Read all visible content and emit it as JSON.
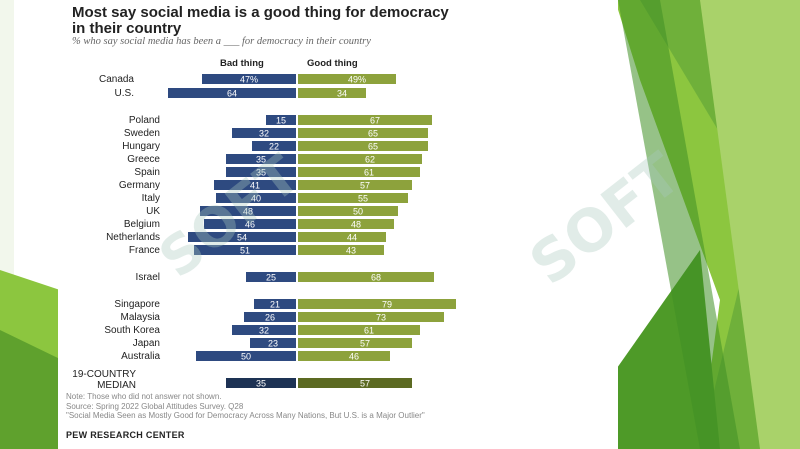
{
  "slide": {
    "accent_green": "#7fbf3a",
    "dark_green": "#3f8f24"
  },
  "chart_data": {
    "type": "bar",
    "title": "Most say social media is a good thing for democracy in their country",
    "subtitle": "% who say social media has been a ___ for democracy in their country",
    "left_header": "Bad thing",
    "right_header": "Good thing",
    "categories": [
      "Canada",
      "U.S.",
      "Poland",
      "Sweden",
      "Hungary",
      "Greece",
      "Spain",
      "Germany",
      "Italy",
      "UK",
      "Belgium",
      "Netherlands",
      "France",
      "Israel",
      "Singapore",
      "Malaysia",
      "South Korea",
      "Japan",
      "Australia",
      "19-COUNTRY MEDIAN"
    ],
    "series": [
      {
        "name": "Bad thing",
        "color": "#2e4a80",
        "values": [
          47,
          64,
          15,
          32,
          22,
          35,
          35,
          41,
          40,
          48,
          46,
          54,
          51,
          25,
          21,
          26,
          32,
          23,
          50,
          35
        ]
      },
      {
        "name": "Good thing",
        "color": "#8da23c",
        "values": [
          49,
          34,
          67,
          65,
          65,
          62,
          61,
          57,
          55,
          50,
          48,
          44,
          43,
          68,
          79,
          73,
          61,
          57,
          46,
          57
        ]
      }
    ],
    "median_colors": {
      "bad": "#1d3254",
      "good": "#5c6a22"
    },
    "value_labels": [
      "47%",
      "64",
      "15",
      "32",
      "22",
      "35",
      "35",
      "41",
      "40",
      "48",
      "46",
      "54",
      "51",
      "25",
      "21",
      "26",
      "32",
      "23",
      "50",
      "35"
    ],
    "good_labels": [
      "49%",
      "34",
      "67",
      "65",
      "65",
      "62",
      "61",
      "57",
      "55",
      "50",
      "48",
      "44",
      "43",
      "68",
      "79",
      "73",
      "61",
      "57",
      "46",
      "57"
    ]
  },
  "footer": {
    "note": "Note: Those who did not answer not shown.",
    "source": "Source: Spring 2022 Global Attitudes Survey. Q28",
    "report": "\"Social Media Seen as Mostly Good for Democracy Across Many Nations, But U.S. is a Major Outlier\"",
    "org": "PEW RESEARCH CENTER"
  },
  "watermarks": {
    "text": "SOFT"
  }
}
